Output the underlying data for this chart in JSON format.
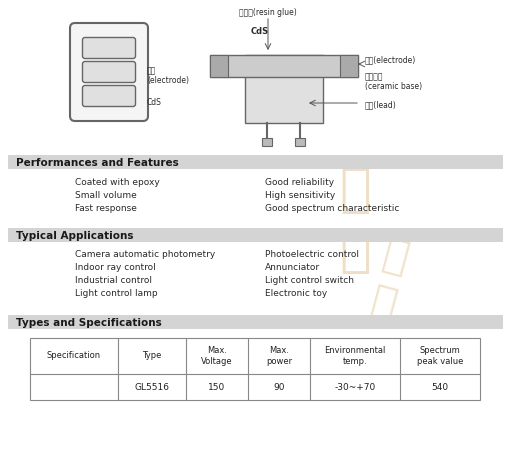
{
  "bg_color": "#ffffff",
  "section_bg": "#d4d4d4",
  "text_color": "#333333",
  "section1_title": "Performances and Features",
  "perf_left": [
    "Coated with epoxy",
    "Small volume",
    "Fast response"
  ],
  "perf_right": [
    "Good reliability",
    "High sensitivity",
    "Good spectrum characteristic"
  ],
  "section2_title": "Typical Applications",
  "app_left": [
    "Camera automatic photometry",
    "Indoor ray control",
    "Industrial control",
    "Light control lamp"
  ],
  "app_right": [
    "Photoelectric control",
    "Annunciator",
    "Light control switch",
    "Electronic toy"
  ],
  "section3_title": "Types and Specifications",
  "table_headers": [
    "Specification",
    "Type",
    "Max.\nVoltage",
    "Max.\npower",
    "Environmental\ntemp.",
    "Spectrum\npeak value"
  ],
  "table_row": [
    "",
    "GL5516",
    "150",
    "90",
    "-30~+70",
    "540"
  ],
  "resin_label": "树脂胶(resin glue)",
  "cds_label": "CdS",
  "electrode_r_label": "电极(electrode)",
  "ceramic_label": "陶瓷基板\n(ceramic base)",
  "lead_label": "导线(lead)",
  "electrode_l_label": "电极\n(electrode)",
  "cds_l_label": "CdS",
  "watermark_color": "#ddb882"
}
